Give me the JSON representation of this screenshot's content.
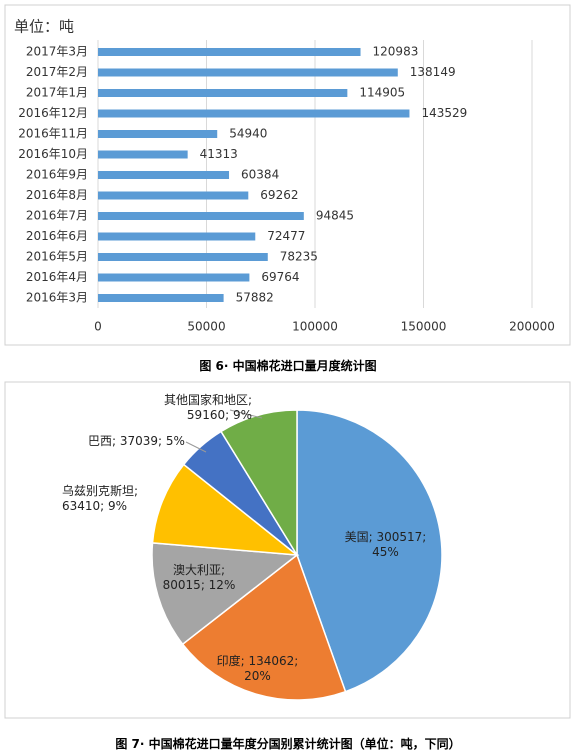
{
  "chart_data": [
    {
      "type": "bar",
      "orientation": "horizontal",
      "unit_label": "单位：吨",
      "caption": "图 6· 中国棉花进口量月度统计图",
      "categories": [
        "2017年3月",
        "2017年2月",
        "2017年1月",
        "2016年12月",
        "2016年11月",
        "2016年10月",
        "2016年9月",
        "2016年8月",
        "2016年7月",
        "2016年6月",
        "2016年5月",
        "2016年4月",
        "2016年3月"
      ],
      "values": [
        120983,
        138149,
        114905,
        143529,
        54940,
        41313,
        60384,
        69262,
        94845,
        72477,
        78235,
        69764,
        57882
      ],
      "color": "#5b9bd5",
      "xlim": [
        0,
        200000
      ],
      "xticks": [
        0,
        50000,
        100000,
        150000,
        200000
      ],
      "grid": true
    },
    {
      "type": "pie",
      "caption": "图 7· 中国棉花进口量年度分国别累计统计图（单位：吨，下同）",
      "categories": [
        "美国",
        "印度",
        "澳大利亚",
        "乌兹别克斯坦",
        "巴西",
        "其他国家和地区"
      ],
      "values": [
        300517,
        134062,
        80015,
        63410,
        37039,
        59160
      ],
      "value_labels": [
        "美国; 300517; 45%",
        "印度; 134062; 20%",
        "澳大利亚; 80015; 12%",
        "乌兹别克斯坦; 63410; 9%",
        "巴西; 37039; 5%",
        "其他国家和地区; 59160; 9%"
      ],
      "colors": [
        "#5b9bd5",
        "#ed7d31",
        "#a5a5a5",
        "#ffc000",
        "#4472c4",
        "#70ad47"
      ]
    }
  ]
}
